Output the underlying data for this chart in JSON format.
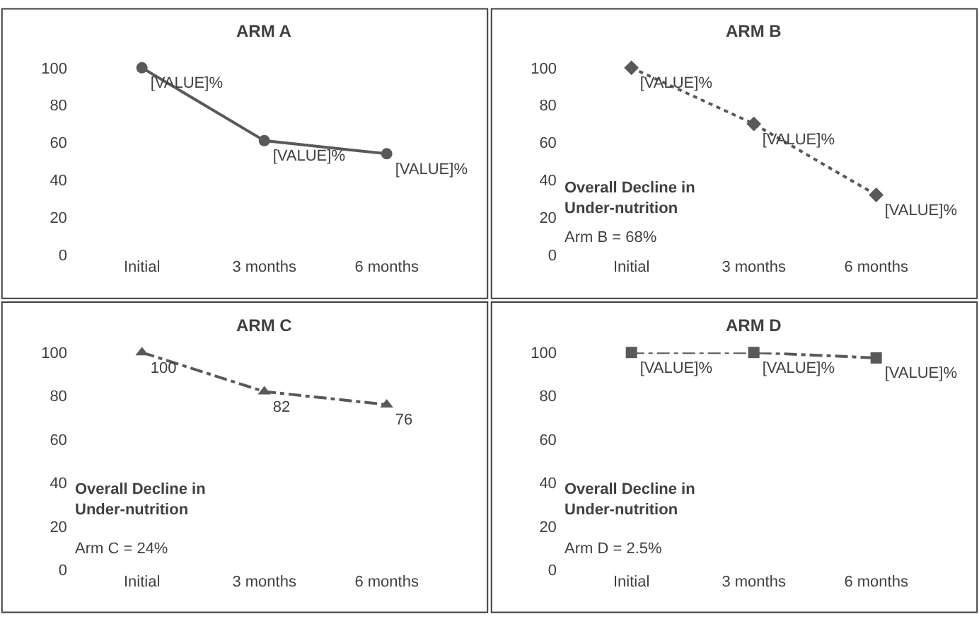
{
  "chart_data": [
    {
      "type": "line",
      "title": "ARM A",
      "categories": [
        "Initial",
        "3 months",
        "6 months"
      ],
      "series": [
        {
          "color": "#595959",
          "values": [
            100,
            61,
            54
          ],
          "value_labels": [
            "[VALUE]%",
            "[VALUE]%",
            "[VALUE]%"
          ]
        }
      ],
      "marker": "circle",
      "line_style": "solid",
      "ylim": [
        0,
        100
      ],
      "yticks": [
        0,
        20,
        40,
        60,
        80,
        100
      ],
      "grid": false
    },
    {
      "type": "line",
      "title": "ARM B",
      "categories": [
        "Initial",
        "3 months",
        "6 months"
      ],
      "series": [
        {
          "color": "#595959",
          "values": [
            100,
            70,
            32
          ],
          "value_labels": [
            "[VALUE]%",
            "[VALUE]%",
            "[VALUE]%"
          ]
        }
      ],
      "marker": "diamond",
      "line_style": "dotted",
      "ylim": [
        0,
        100
      ],
      "yticks": [
        0,
        20,
        40,
        60,
        80,
        100
      ],
      "grid": false,
      "annotations": [
        "Overall Decline in Under-nutrition",
        "Arm B = 68%"
      ]
    },
    {
      "type": "line",
      "title": "ARM C",
      "categories": [
        "Initial",
        "3 months",
        "6 months"
      ],
      "series": [
        {
          "color": "#595959",
          "values": [
            100,
            82,
            76
          ]
        }
      ],
      "data_labels": true,
      "marker": "triangle",
      "line_style": "dashed",
      "ylim": [
        0,
        100
      ],
      "yticks": [
        0,
        20,
        40,
        60,
        80,
        100
      ],
      "grid": false,
      "annotations": [
        "Overall Decline in Under-nutrition",
        "Arm C = 24%"
      ]
    },
    {
      "type": "line",
      "title": "ARM D",
      "categories": [
        "Initial",
        "3 months",
        "6 months"
      ],
      "series": [
        {
          "color": "#595959",
          "values": [
            100,
            100,
            97.5
          ],
          "value_labels": [
            "[VALUE]%",
            "[VALUE]%",
            "[VALUE]%"
          ]
        }
      ],
      "marker": "square",
      "line_style": "dashed",
      "ylim": [
        0,
        100
      ],
      "yticks": [
        0,
        20,
        40,
        60,
        80,
        100
      ],
      "grid": false,
      "annotations": [
        "Overall Decline in Under-nutrition",
        "Arm D = 2.5%"
      ]
    }
  ]
}
